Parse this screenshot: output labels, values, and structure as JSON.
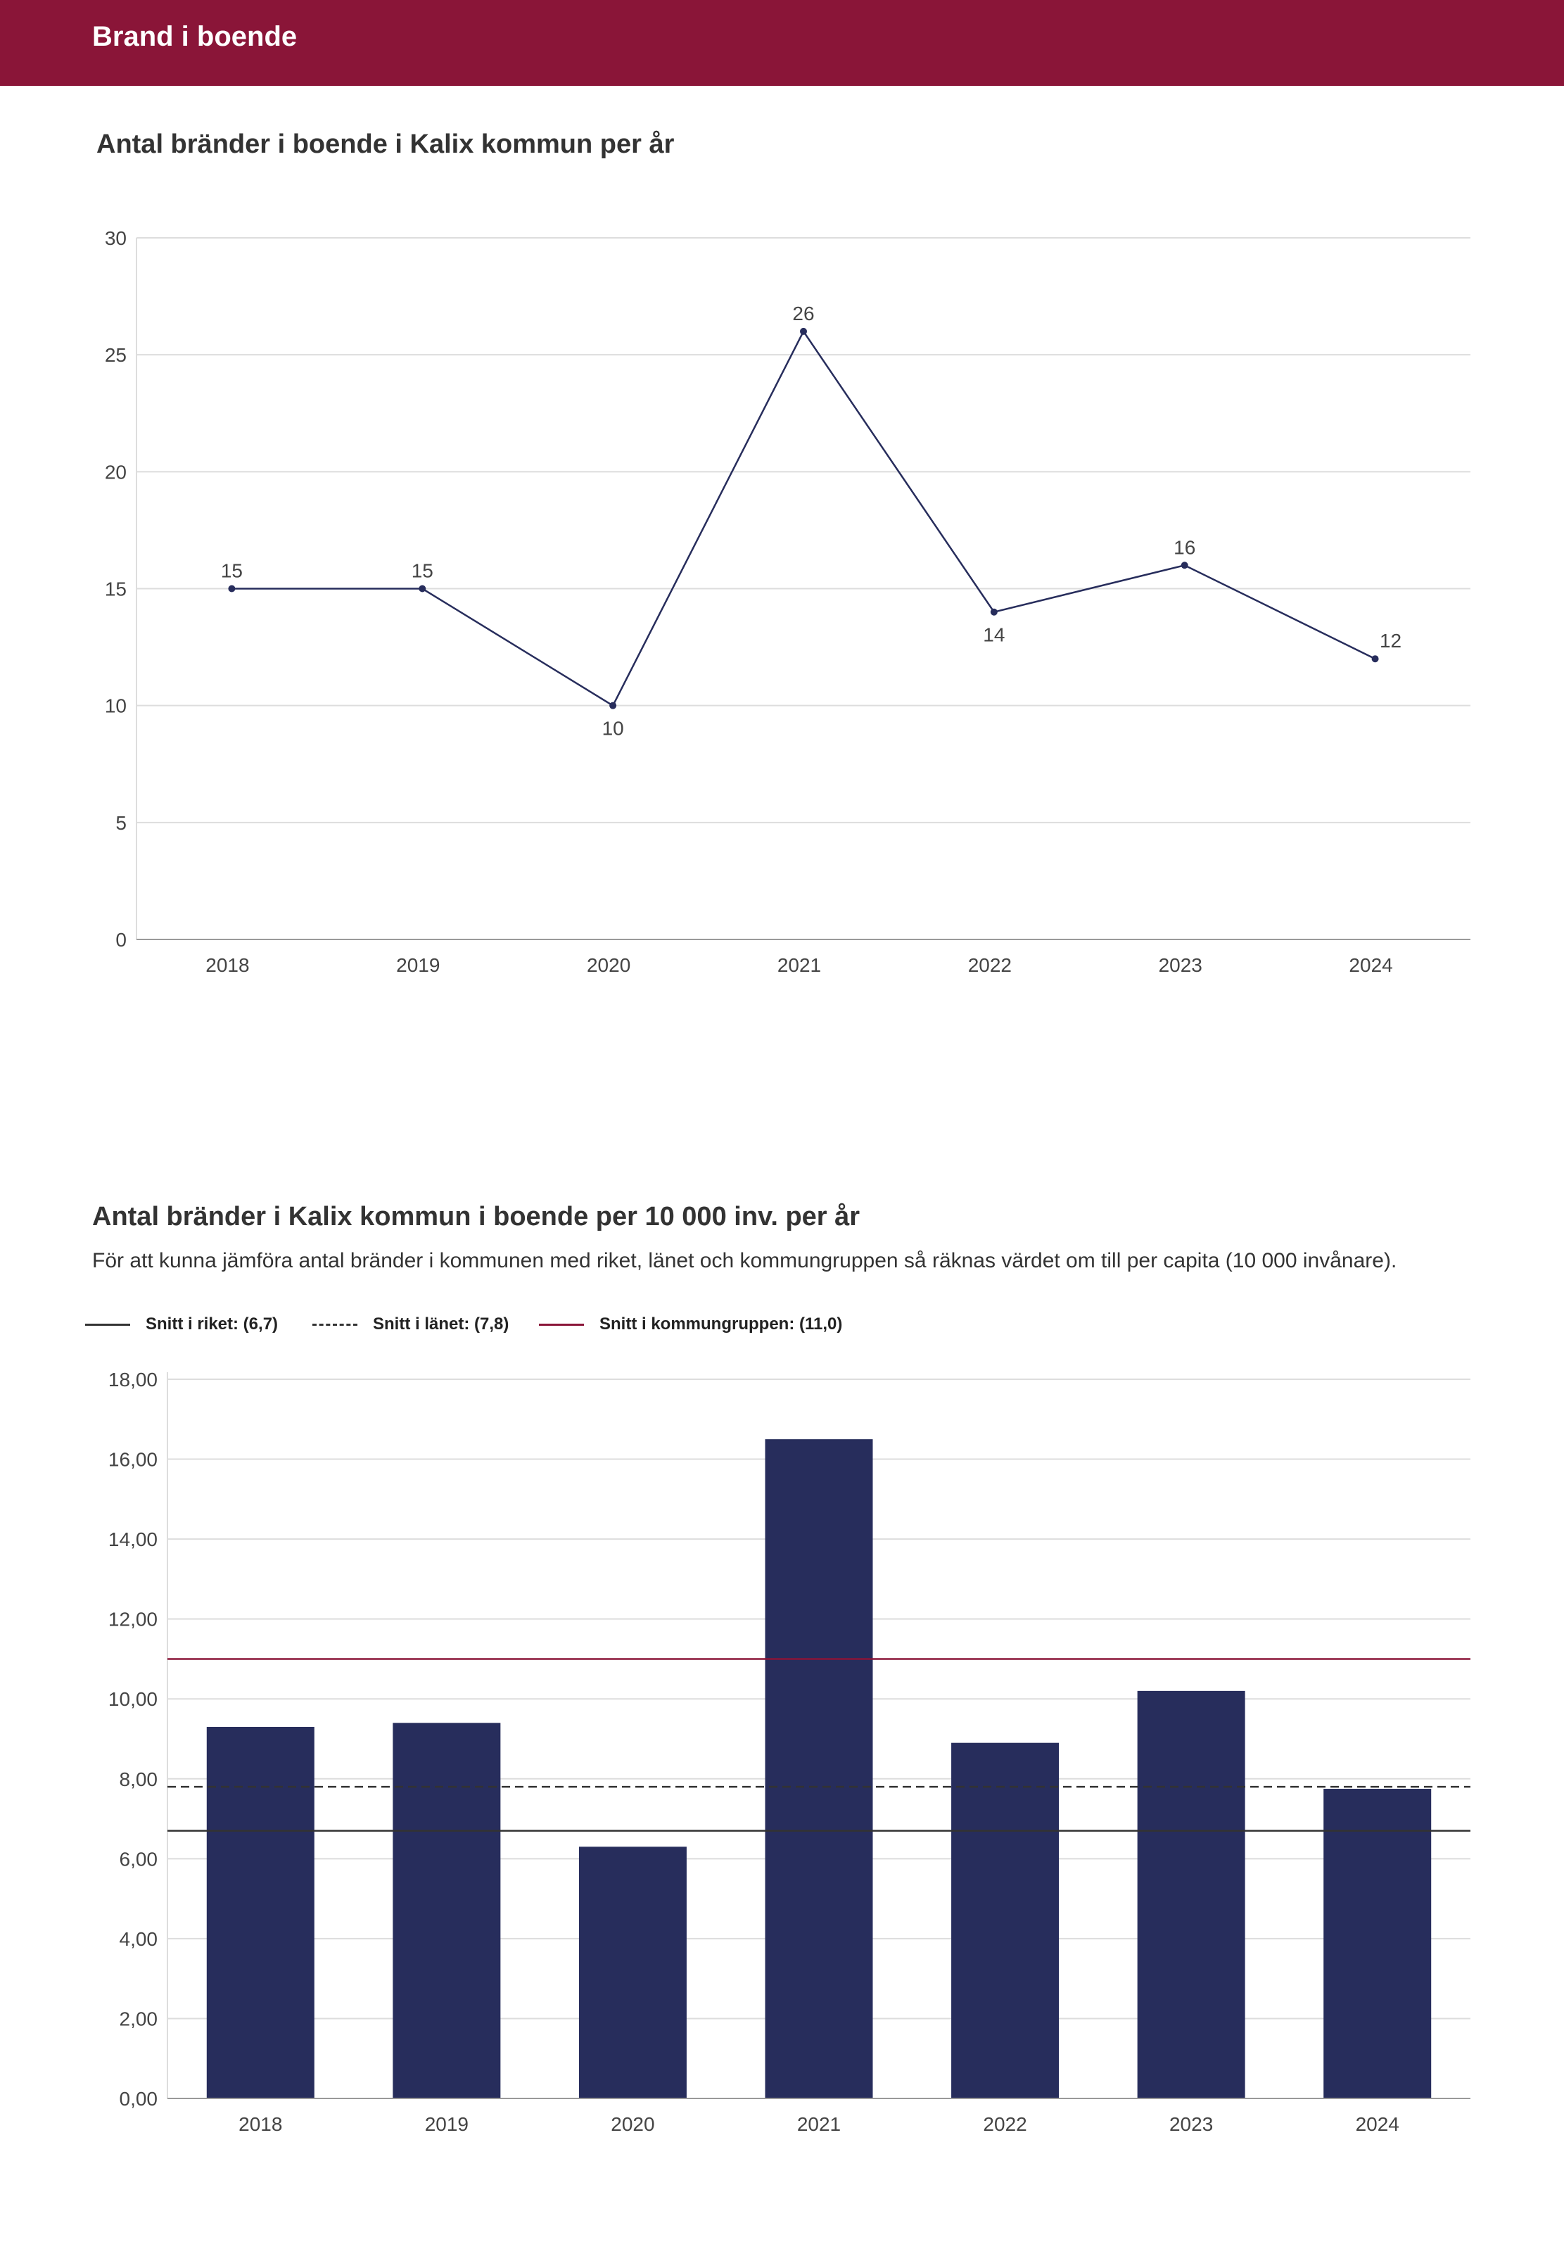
{
  "header": {
    "title": "Brand i boende"
  },
  "colors": {
    "brand": "#8a1538",
    "bar": "#272d5c",
    "line": "#272d5c"
  },
  "chart_data": [
    {
      "type": "line",
      "title": "Antal bränder i boende i Kalix kommun per år",
      "categories": [
        "2018",
        "2019",
        "2020",
        "2021",
        "2022",
        "2023",
        "2024"
      ],
      "values": [
        15,
        15,
        10,
        26,
        14,
        16,
        12
      ],
      "data_labels": [
        "15",
        "15",
        "10",
        "26",
        "14",
        "16",
        "12"
      ],
      "ylim": [
        0,
        30
      ],
      "yticks": [
        0,
        5,
        10,
        15,
        20,
        25,
        30
      ],
      "ytick_labels": [
        "0",
        "5",
        "10",
        "15",
        "20",
        "25",
        "30"
      ],
      "grid": true
    },
    {
      "type": "bar",
      "title": "Antal bränder i Kalix kommun i boende per 10 000 inv. per år",
      "subtitle": "För att kunna jämföra antal bränder i kommunen med riket, länet och kommungruppen så räknas värdet om till per capita (10 000 invånare).",
      "categories": [
        "2018",
        "2019",
        "2020",
        "2021",
        "2022",
        "2023",
        "2024"
      ],
      "values": [
        9.3,
        9.4,
        6.3,
        16.5,
        8.9,
        10.2,
        7.75
      ],
      "ylim": [
        0,
        18
      ],
      "yticks": [
        0,
        2,
        4,
        6,
        8,
        10,
        12,
        14,
        16,
        18
      ],
      "ytick_labels": [
        "0,00",
        "2,00",
        "4,00",
        "6,00",
        "8,00",
        "10,00",
        "12,00",
        "14,00",
        "16,00",
        "18,00"
      ],
      "reference_lines": [
        {
          "name": "Snitt i riket: (6,7)",
          "value": 6.7,
          "style": "solid",
          "color": "#333333"
        },
        {
          "name": "Snitt i länet: (7,8)",
          "value": 7.8,
          "style": "dashed",
          "color": "#333333"
        },
        {
          "name": "Snitt i kommungruppen: (11,0)",
          "value": 11.0,
          "style": "solid",
          "color": "#8a1538"
        }
      ],
      "legend_position": "top-left",
      "grid": true
    }
  ]
}
